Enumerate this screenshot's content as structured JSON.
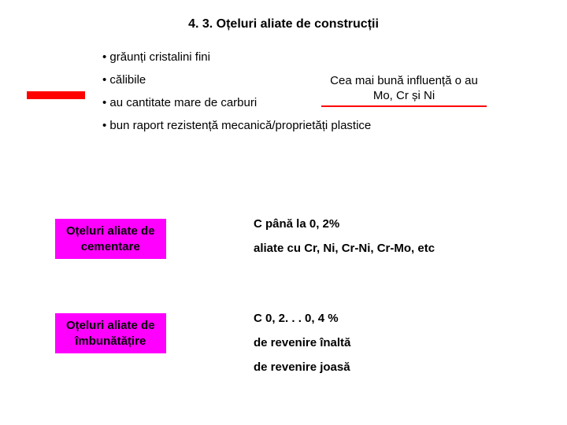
{
  "title": "4. 3. Oțeluri aliate de construcții",
  "bullets": {
    "b1": "• grăunți cristalini fini",
    "b2": "• călibile",
    "b3": "• au cantitate mare de carburi",
    "b4": "• bun raport rezistență mecanică/proprietăți plastice"
  },
  "callout": "Cea mai bună influență o au Mo, Cr și Ni",
  "section1": {
    "label_line1": "Oțeluri aliate de",
    "label_line2": "cementare",
    "desc1": "C până la 0, 2%",
    "desc2": "aliate cu Cr, Ni, Cr-Ni, Cr-Mo, etc"
  },
  "section2": {
    "label_line1": "Oțeluri aliate de",
    "label_line2": "îmbunătățire",
    "desc1": "C  0, 2. . . 0, 4 %",
    "desc2": "de revenire înaltă",
    "desc3": "de revenire joasă"
  },
  "colors": {
    "accent_red": "#ff0000",
    "accent_magenta": "#ff00ff",
    "background": "#ffffff",
    "text": "#000000"
  }
}
